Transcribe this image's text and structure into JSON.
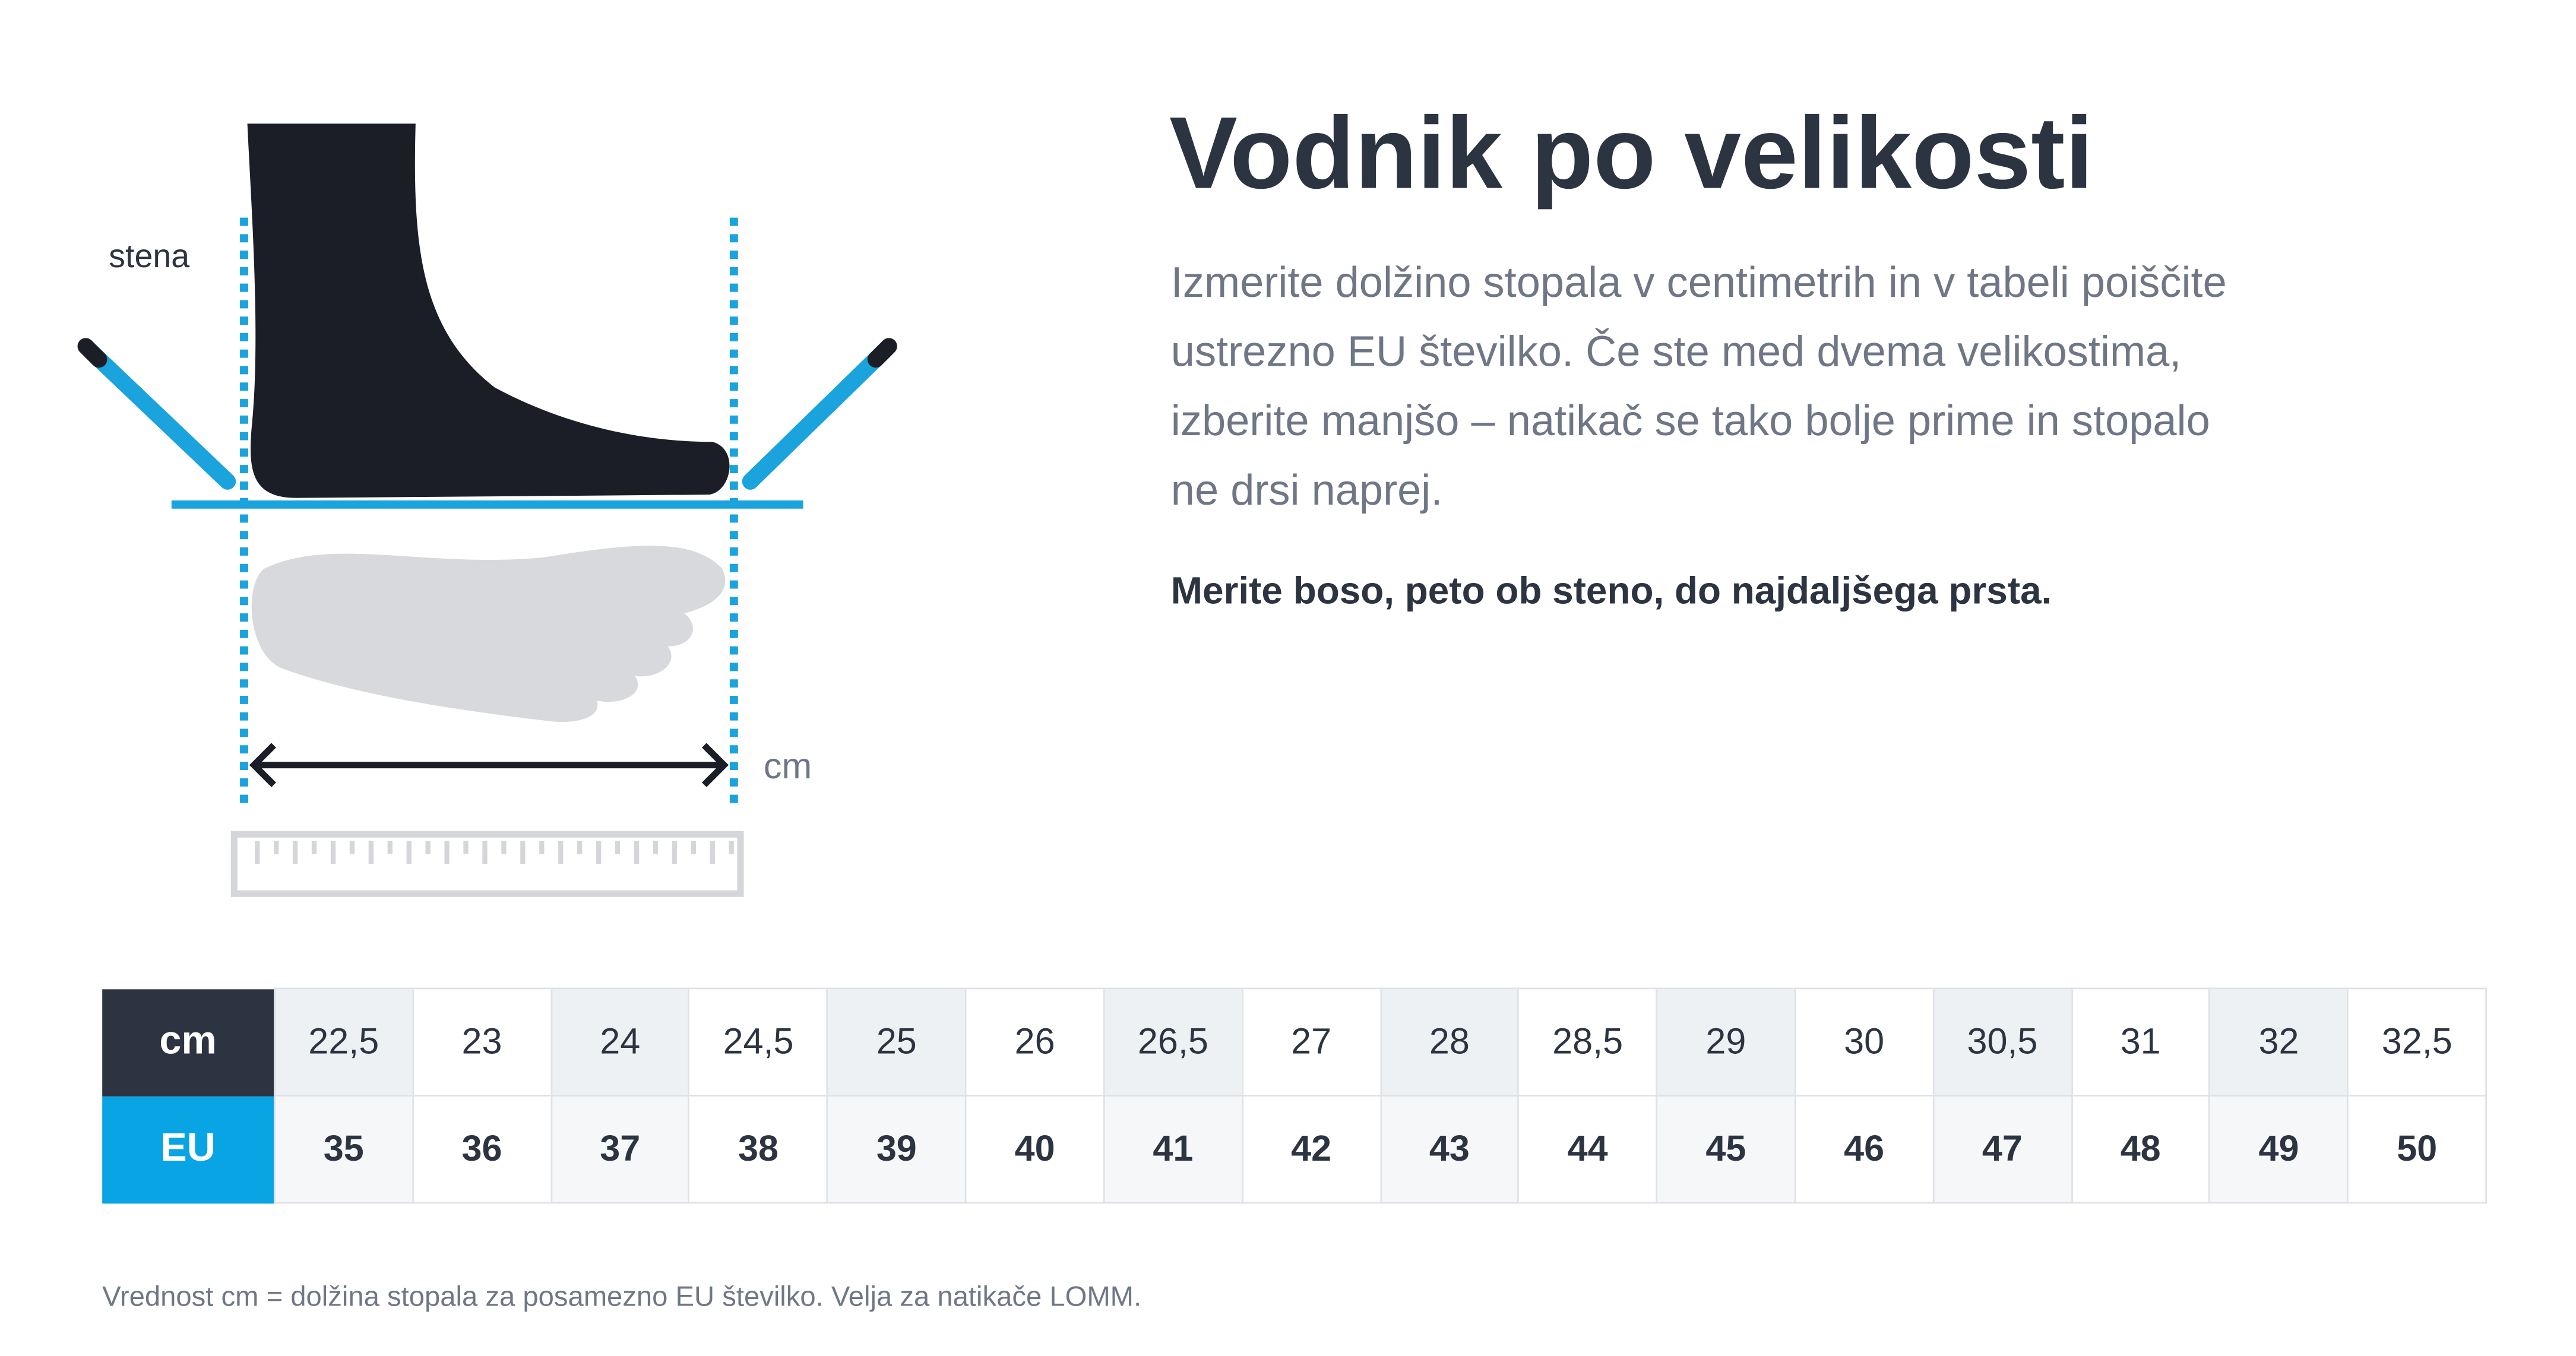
{
  "header": {
    "title": "Vodnik po velikosti",
    "intro": "Izmerite dolžino stopala v centimetrih in v tabeli poiščite ustrezno EU številko. Če ste med dvema velikostima, izberite manjšo – natikač se tako bolje prime in stopalo ne drsi naprej.",
    "instruction": "Merite boso, peto ob steno, do najdaljšega prsta."
  },
  "illustration": {
    "wall_label": "stena",
    "unit_label": "cm"
  },
  "table": {
    "row_headers": [
      "cm",
      "EU"
    ],
    "cm": [
      "22,5",
      "23",
      "24",
      "24,5",
      "25",
      "26",
      "26,5",
      "27",
      "28",
      "28,5",
      "29",
      "30",
      "30,5",
      "31",
      "32",
      "32,5"
    ],
    "eu": [
      35,
      36,
      37,
      38,
      39,
      40,
      41,
      42,
      43,
      44,
      45,
      46,
      47,
      48,
      49,
      50
    ]
  },
  "footnote": "Vrednost cm = dolžina stopala za posamezno EU številko. Velja za natikače LOMM."
}
